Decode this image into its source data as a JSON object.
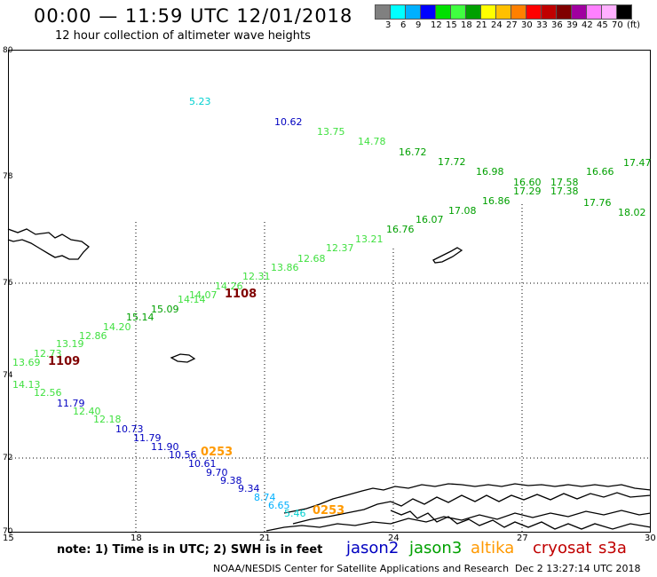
{
  "header": {
    "title": "00:00 — 11:59 UTC 12/01/2018",
    "subtitle": "12 hour collection of altimeter wave heights"
  },
  "colorbar": {
    "colors": [
      "#808080",
      "#00ffff",
      "#00b0ff",
      "#0000ff",
      "#00e000",
      "#40ff40",
      "#00a000",
      "#ffff00",
      "#ffc000",
      "#ff8000",
      "#ff0000",
      "#c00000",
      "#800000",
      "#a000a0",
      "#ff80ff",
      "#ffb0ff",
      "#000000"
    ],
    "labels": [
      "3",
      "6",
      "9",
      "12",
      "15",
      "18",
      "21",
      "24",
      "27",
      "30",
      "33",
      "36",
      "39",
      "42",
      "45",
      "70",
      "(ft)"
    ]
  },
  "axes": {
    "y_labels": [
      "80",
      "78",
      "76",
      "74",
      "72",
      "70"
    ],
    "x_labels": [
      "15",
      "18",
      "21",
      "24",
      "27",
      "30"
    ]
  },
  "tracks": {
    "upper": [
      {
        "v": "5.23",
        "c": "#00d0d0"
      },
      {
        "v": "10.62",
        "c": "#0000c0"
      },
      {
        "v": "13.75",
        "c": "#40e040"
      },
      {
        "v": "14.78",
        "c": "#40e040"
      },
      {
        "v": "16.72",
        "c": "#00a000"
      },
      {
        "v": "17.72",
        "c": "#00a000"
      },
      {
        "v": "16.98",
        "c": "#00a000"
      },
      {
        "v": "16.60",
        "c": "#00a000"
      },
      {
        "v": "17.58",
        "c": "#00a000"
      },
      {
        "v": "16.66",
        "c": "#00a000"
      },
      {
        "v": "17.47",
        "c": "#00a000"
      },
      {
        "v": "17.29",
        "c": "#00a000"
      },
      {
        "v": "17.38",
        "c": "#00a000"
      },
      {
        "v": "17.76",
        "c": "#00a000"
      },
      {
        "v": "18.02",
        "c": "#00a000"
      },
      {
        "v": "16.86",
        "c": "#00a000"
      },
      {
        "v": "17.08",
        "c": "#00a000"
      },
      {
        "v": "16.07",
        "c": "#00a000"
      },
      {
        "v": "16.76",
        "c": "#00a000"
      },
      {
        "v": "13.21",
        "c": "#40e040"
      },
      {
        "v": "12.37",
        "c": "#40e040"
      },
      {
        "v": "12.68",
        "c": "#40e040"
      },
      {
        "v": "13.86",
        "c": "#40e040"
      },
      {
        "v": "12.31",
        "c": "#40e040"
      },
      {
        "v": "14.26",
        "c": "#40e040"
      },
      {
        "v": "14.07",
        "c": "#40e040"
      },
      {
        "v": "14.14",
        "c": "#40e040"
      },
      {
        "v": "15.09",
        "c": "#00a000"
      },
      {
        "v": "15.14",
        "c": "#00a000"
      },
      {
        "v": "14.20",
        "c": "#40e040"
      },
      {
        "v": "12.86",
        "c": "#40e040"
      },
      {
        "v": "13.19",
        "c": "#40e040"
      },
      {
        "v": "12.73",
        "c": "#40e040"
      },
      {
        "v": "13.69",
        "c": "#40e040"
      }
    ],
    "lower": [
      {
        "v": "14.13",
        "c": "#40e040"
      },
      {
        "v": "12.56",
        "c": "#40e040"
      },
      {
        "v": "11.79",
        "c": "#0000c0"
      },
      {
        "v": "12.40",
        "c": "#40e040"
      },
      {
        "v": "12.18",
        "c": "#40e040"
      },
      {
        "v": "10.73",
        "c": "#0000c0"
      },
      {
        "v": "11.79",
        "c": "#0000c0"
      },
      {
        "v": "11.90",
        "c": "#0000c0"
      },
      {
        "v": "10.56",
        "c": "#0000c0"
      },
      {
        "v": "10.61",
        "c": "#0000c0"
      },
      {
        "v": "9.70",
        "c": "#0000c0"
      },
      {
        "v": "9.38",
        "c": "#0000c0"
      },
      {
        "v": "9.34",
        "c": "#0000c0"
      },
      {
        "v": "8.74",
        "c": "#00b0ff"
      },
      {
        "v": "6.65",
        "c": "#00b0ff"
      },
      {
        "v": "5.46",
        "c": "#00d0d0"
      }
    ]
  },
  "times": [
    {
      "v": "1108",
      "c": "#800000"
    },
    {
      "v": "1109",
      "c": "#800000"
    },
    {
      "v": "0253",
      "c": "#ff9900"
    },
    {
      "v": "0253",
      "c": "#ff9900"
    }
  ],
  "note": "note: 1) Time is in UTC; 2) SWH is in feet",
  "legend": [
    {
      "name": "jason2",
      "c": "#0000c0"
    },
    {
      "name": "jason3",
      "c": "#00a000"
    },
    {
      "name": "altika",
      "c": "#ff9900"
    },
    {
      "name": "cryosat",
      "c": "#c00000"
    },
    {
      "name": "s3a",
      "c": "#c00000"
    }
  ],
  "footer": {
    "center": "NOAA/NESDIS Center for Satellite Applications and Research",
    "right": "Dec  2 13:27:14 UTC 2018"
  }
}
